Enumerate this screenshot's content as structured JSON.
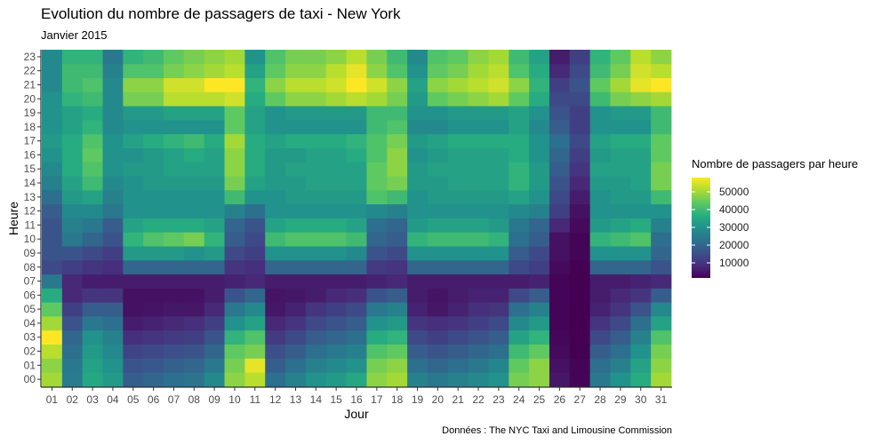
{
  "chart_data": {
    "type": "heatmap",
    "title": "Evolution du nombre de passagers de taxi - New York",
    "subtitle": "Janvier 2015",
    "xlabel": "Jour",
    "ylabel": "Heure",
    "caption": "Données : The NYC Taxi and Limousine Commission",
    "x": [
      "01",
      "02",
      "03",
      "04",
      "05",
      "06",
      "07",
      "08",
      "09",
      "10",
      "11",
      "12",
      "13",
      "14",
      "15",
      "16",
      "17",
      "18",
      "19",
      "20",
      "21",
      "22",
      "23",
      "24",
      "25",
      "26",
      "27",
      "28",
      "29",
      "30",
      "31"
    ],
    "y": [
      "00",
      "01",
      "02",
      "03",
      "04",
      "05",
      "06",
      "07",
      "08",
      "09",
      "10",
      "11",
      "12",
      "13",
      "14",
      "15",
      "16",
      "17",
      "18",
      "19",
      "20",
      "21",
      "22",
      "23"
    ],
    "values": [
      [
        50000,
        25000,
        35000,
        32000,
        18000,
        20000,
        22000,
        23000,
        28000,
        48000,
        52000,
        22000,
        26000,
        30000,
        32000,
        35000,
        48000,
        50000,
        26000,
        24000,
        26000,
        28000,
        30000,
        46000,
        48000,
        5000,
        2000,
        24000,
        30000,
        36000,
        50000
      ],
      [
        48000,
        24000,
        34000,
        30000,
        16000,
        17000,
        19000,
        20000,
        24000,
        46000,
        56000,
        18000,
        22000,
        26000,
        28000,
        30000,
        46000,
        48000,
        22000,
        20000,
        22000,
        24000,
        27000,
        44000,
        48000,
        4000,
        2000,
        22000,
        26000,
        34000,
        48000
      ],
      [
        52000,
        22000,
        32000,
        28000,
        13000,
        14000,
        15000,
        16000,
        20000,
        44000,
        46000,
        15000,
        18000,
        22000,
        24000,
        26000,
        42000,
        44000,
        18000,
        16000,
        18000,
        20000,
        22000,
        40000,
        44000,
        3000,
        1500,
        18000,
        22000,
        30000,
        46000
      ],
      [
        58000,
        20000,
        30000,
        26000,
        9000,
        10000,
        11000,
        12000,
        16000,
        38000,
        42000,
        11000,
        14000,
        18000,
        20000,
        22000,
        36000,
        38000,
        14000,
        12000,
        14000,
        16000,
        18000,
        34000,
        38000,
        2500,
        1500,
        14000,
        18000,
        26000,
        42000
      ],
      [
        50000,
        16000,
        24000,
        22000,
        6000,
        7000,
        8000,
        9000,
        12000,
        30000,
        34000,
        8000,
        10000,
        14000,
        16000,
        18000,
        30000,
        32000,
        10000,
        9000,
        10000,
        12000,
        14000,
        28000,
        32000,
        2000,
        1500,
        10000,
        14000,
        22000,
        34000
      ],
      [
        44000,
        12000,
        18000,
        18000,
        4000,
        4500,
        5000,
        5000,
        8000,
        24000,
        28000,
        5000,
        7000,
        10000,
        12000,
        14000,
        24000,
        26000,
        7000,
        5000,
        7000,
        9000,
        10000,
        22000,
        26000,
        2000,
        1500,
        7000,
        10000,
        16000,
        28000
      ],
      [
        36000,
        8000,
        10000,
        10000,
        4000,
        4000,
        4000,
        4000,
        6000,
        16000,
        20000,
        4500,
        5000,
        6000,
        8000,
        9000,
        16000,
        18000,
        6000,
        4500,
        6000,
        7000,
        7000,
        14000,
        18000,
        2000,
        1500,
        6000,
        8000,
        10000,
        18000
      ],
      [
        24000,
        8000,
        6000,
        6000,
        6000,
        6000,
        6000,
        6000,
        6000,
        7000,
        8000,
        6000,
        6000,
        6000,
        6000,
        6000,
        7000,
        8000,
        6000,
        6000,
        6000,
        6000,
        6000,
        6000,
        7000,
        2000,
        1500,
        6000,
        6000,
        7000,
        8000
      ],
      [
        14000,
        12000,
        10000,
        9000,
        20000,
        20000,
        20000,
        20000,
        20000,
        10000,
        9000,
        20000,
        20000,
        20000,
        20000,
        20000,
        11000,
        10000,
        20000,
        20000,
        20000,
        20000,
        20000,
        14000,
        12000,
        3000,
        1500,
        20000,
        20000,
        20000,
        16000
      ],
      [
        16000,
        16000,
        14000,
        12000,
        32000,
        32000,
        32000,
        30000,
        32000,
        14000,
        12000,
        30000,
        30000,
        30000,
        30000,
        28000,
        16000,
        14000,
        30000,
        30000,
        30000,
        30000,
        30000,
        18000,
        14000,
        4000,
        2000,
        30000,
        30000,
        30000,
        20000
      ],
      [
        16000,
        24000,
        20000,
        16000,
        38000,
        42000,
        44000,
        46000,
        38000,
        18000,
        14000,
        40000,
        42000,
        42000,
        42000,
        40000,
        20000,
        18000,
        38000,
        40000,
        40000,
        40000,
        38000,
        22000,
        18000,
        4000,
        2000,
        38000,
        40000,
        42000,
        22000
      ],
      [
        16000,
        26000,
        24000,
        18000,
        34000,
        36000,
        36000,
        36000,
        34000,
        20000,
        16000,
        34000,
        36000,
        36000,
        36000,
        34000,
        22000,
        20000,
        32000,
        34000,
        34000,
        34000,
        32000,
        24000,
        20000,
        8000,
        3000,
        32000,
        34000,
        36000,
        26000
      ],
      [
        18000,
        28000,
        28000,
        24000,
        30000,
        30000,
        30000,
        30000,
        30000,
        26000,
        22000,
        30000,
        30000,
        30000,
        30000,
        30000,
        28000,
        26000,
        30000,
        30000,
        30000,
        30000,
        30000,
        28000,
        26000,
        12000,
        4000,
        30000,
        30000,
        30000,
        30000
      ],
      [
        22000,
        32000,
        34000,
        26000,
        30000,
        30000,
        30000,
        30000,
        30000,
        40000,
        30000,
        30000,
        32000,
        32000,
        32000,
        32000,
        42000,
        40000,
        30000,
        32000,
        32000,
        32000,
        32000,
        34000,
        30000,
        14000,
        6000,
        30000,
        32000,
        32000,
        40000
      ],
      [
        26000,
        34000,
        40000,
        28000,
        30000,
        32000,
        32000,
        32000,
        32000,
        46000,
        34000,
        32000,
        32000,
        34000,
        34000,
        34000,
        44000,
        46000,
        32000,
        32000,
        34000,
        34000,
        34000,
        38000,
        32000,
        16000,
        8000,
        32000,
        32000,
        34000,
        46000
      ],
      [
        28000,
        36000,
        42000,
        30000,
        32000,
        32000,
        34000,
        34000,
        34000,
        48000,
        36000,
        32000,
        34000,
        34000,
        34000,
        34000,
        44000,
        48000,
        32000,
        34000,
        34000,
        34000,
        34000,
        38000,
        32000,
        18000,
        10000,
        34000,
        34000,
        34000,
        46000
      ],
      [
        30000,
        36000,
        44000,
        30000,
        30000,
        32000,
        34000,
        36000,
        34000,
        48000,
        36000,
        32000,
        32000,
        34000,
        34000,
        36000,
        42000,
        48000,
        30000,
        32000,
        34000,
        34000,
        34000,
        36000,
        30000,
        20000,
        12000,
        32000,
        34000,
        34000,
        44000
      ],
      [
        32000,
        36000,
        42000,
        30000,
        34000,
        36000,
        38000,
        40000,
        36000,
        50000,
        36000,
        34000,
        36000,
        36000,
        36000,
        38000,
        42000,
        46000,
        32000,
        34000,
        36000,
        36000,
        36000,
        36000,
        30000,
        22000,
        14000,
        34000,
        36000,
        36000,
        44000
      ],
      [
        30000,
        34000,
        38000,
        28000,
        30000,
        30000,
        30000,
        30000,
        30000,
        44000,
        34000,
        30000,
        30000,
        30000,
        30000,
        30000,
        40000,
        42000,
        28000,
        28000,
        30000,
        30000,
        30000,
        34000,
        28000,
        18000,
        12000,
        30000,
        30000,
        30000,
        40000
      ],
      [
        30000,
        34000,
        36000,
        28000,
        32000,
        32000,
        34000,
        34000,
        34000,
        44000,
        34000,
        30000,
        32000,
        32000,
        32000,
        32000,
        40000,
        40000,
        30000,
        30000,
        32000,
        32000,
        32000,
        34000,
        30000,
        16000,
        12000,
        30000,
        32000,
        32000,
        40000
      ],
      [
        30000,
        38000,
        40000,
        28000,
        46000,
        46000,
        52000,
        52000,
        52000,
        54000,
        36000,
        44000,
        48000,
        48000,
        50000,
        52000,
        50000,
        46000,
        32000,
        44000,
        46000,
        48000,
        50000,
        44000,
        36000,
        14000,
        14000,
        40000,
        46000,
        48000,
        50000
      ],
      [
        28000,
        40000,
        42000,
        28000,
        48000,
        48000,
        54000,
        54000,
        58000,
        58000,
        38000,
        48000,
        52000,
        52000,
        54000,
        58000,
        54000,
        48000,
        34000,
        48000,
        50000,
        52000,
        54000,
        48000,
        38000,
        12000,
        16000,
        44000,
        50000,
        56000,
        58000
      ],
      [
        28000,
        40000,
        40000,
        26000,
        42000,
        42000,
        46000,
        48000,
        50000,
        52000,
        34000,
        44000,
        48000,
        48000,
        52000,
        56000,
        48000,
        42000,
        30000,
        44000,
        46000,
        50000,
        52000,
        42000,
        36000,
        8000,
        14000,
        40000,
        46000,
        54000,
        52000
      ],
      [
        28000,
        38000,
        38000,
        24000,
        38000,
        40000,
        44000,
        46000,
        48000,
        50000,
        30000,
        42000,
        46000,
        46000,
        48000,
        52000,
        46000,
        40000,
        28000,
        42000,
        44000,
        48000,
        50000,
        40000,
        34000,
        6000,
        12000,
        38000,
        44000,
        52000,
        48000
      ]
    ],
    "color_scale": [
      "#440154",
      "#472d7b",
      "#3b528b",
      "#2c728e",
      "#21918c",
      "#28ae80",
      "#5ec962",
      "#addc30",
      "#fde725"
    ],
    "value_range": [
      1500,
      58000
    ],
    "legend": {
      "title": "Nombre de passagers par heure",
      "ticks": [
        10000,
        20000,
        30000,
        40000,
        50000
      ],
      "placement": "right"
    },
    "grid": false
  }
}
